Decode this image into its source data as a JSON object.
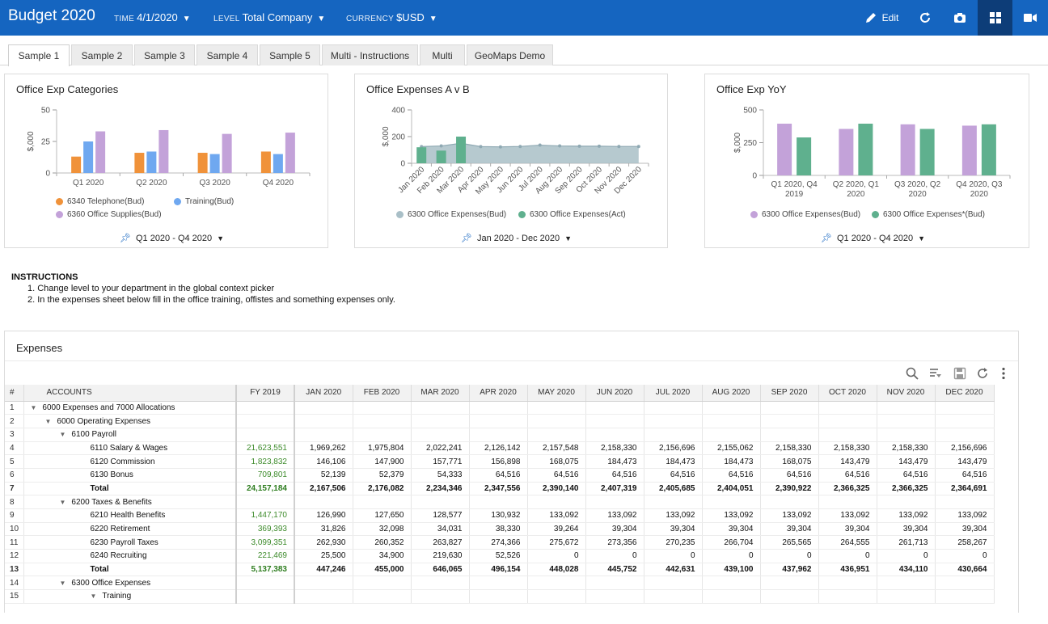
{
  "header": {
    "title": "Budget 2020",
    "time_label": "TIME",
    "time_value": "4/1/2020",
    "level_label": "LEVEL",
    "level_value": "Total Company",
    "currency_label": "CURRENCY",
    "currency_value": "$USD",
    "edit_label": "Edit"
  },
  "colors": {
    "brand": "#1565c0",
    "orange": "#f0923a",
    "blue": "#6fa8f0",
    "purple": "#c3a2d9",
    "teal": "#5fb08e",
    "slate": "#a9bfc7"
  },
  "tabs": [
    {
      "label": "Sample 1",
      "active": true
    },
    {
      "label": "Sample 2"
    },
    {
      "label": "Sample 3"
    },
    {
      "label": "Sample 4"
    },
    {
      "label": "Sample 5"
    },
    {
      "label": "Multi - Instructions"
    },
    {
      "label": "Multi"
    },
    {
      "label": "GeoMaps Demo"
    }
  ],
  "charts": {
    "categories": {
      "title": "Office Exp Categories",
      "period": "Q1 2020 - Q4 2020"
    },
    "avb": {
      "title": "Office Expenses A v B",
      "period": "Jan 2020 - Dec 2020"
    },
    "yoy": {
      "title": "Office Exp YoY",
      "period": "Q1 2020 - Q4 2020"
    }
  },
  "chart_data": [
    {
      "type": "bar",
      "title": "Office Exp Categories",
      "ylabel": "$,000",
      "ylim": [
        0,
        50
      ],
      "yticks": [
        "0",
        "25",
        "50"
      ],
      "categories": [
        "Q1 2020",
        "Q2 2020",
        "Q3 2020",
        "Q4 2020"
      ],
      "series": [
        {
          "name": "6340 Telephone(Bud)",
          "color": "#f0923a",
          "values": [
            13,
            16,
            16,
            17
          ]
        },
        {
          "name": "Training(Bud)",
          "color": "#6fa8f0",
          "values": [
            25,
            17,
            15,
            15
          ]
        },
        {
          "name": "6360 Office Supplies(Bud)",
          "color": "#c3a2d9",
          "values": [
            33,
            34,
            31,
            32
          ]
        }
      ],
      "legend": "bottom"
    },
    {
      "type": "area",
      "title": "Office Expenses A v B",
      "ylabel": "$,000",
      "ylim": [
        0,
        400
      ],
      "yticks": [
        "0",
        "200",
        "400"
      ],
      "categories": [
        "Jan 2020",
        "Feb 2020",
        "Mar 2020",
        "Apr 2020",
        "May 2020",
        "Jun 2020",
        "Jul 2020",
        "Aug 2020",
        "Sep 2020",
        "Oct 2020",
        "Nov 2020",
        "Dec 2020"
      ],
      "series": [
        {
          "name": "6300 Office Expenses(Bud)",
          "color": "#a9bfc7",
          "kind": "area",
          "values": [
            125,
            130,
            150,
            125,
            123,
            126,
            136,
            130,
            128,
            128,
            126,
            126
          ]
        },
        {
          "name": "6300 Office Expenses(Act)",
          "color": "#5fb08e",
          "kind": "bar",
          "values": [
            120,
            95,
            200,
            null,
            null,
            null,
            null,
            null,
            null,
            null,
            null,
            null
          ]
        }
      ],
      "legend": "bottom"
    },
    {
      "type": "bar",
      "title": "Office Exp YoY",
      "ylabel": "$,000",
      "ylim": [
        0,
        500
      ],
      "yticks": [
        "0",
        "250",
        "500"
      ],
      "categories": [
        [
          "Q1 2020, Q4",
          "2019"
        ],
        [
          "Q2 2020, Q1",
          "2020"
        ],
        [
          "Q3 2020, Q2",
          "2020"
        ],
        [
          "Q4 2020, Q3",
          "2020"
        ]
      ],
      "series": [
        {
          "name": "6300 Office Expenses(Bud)",
          "color": "#c3a2d9",
          "values": [
            395,
            355,
            390,
            380
          ]
        },
        {
          "name": "6300 Office Expenses*(Bud)",
          "color": "#5fb08e",
          "values": [
            290,
            395,
            355,
            390
          ]
        }
      ],
      "legend": "bottom"
    }
  ],
  "instructions": {
    "title": "INSTRUCTIONS",
    "steps": [
      "1. Change level to your department in the global context picker",
      "2. In the expenses sheet below fill  in the office training, offistes and something expenses only."
    ]
  },
  "expenses": {
    "title": "Expenses",
    "columns": [
      "#",
      "ACCOUNTS",
      "FY 2019",
      "JAN 2020",
      "FEB 2020",
      "MAR 2020",
      "APR 2020",
      "MAY 2020",
      "JUN 2020",
      "JUL 2020",
      "AUG 2020",
      "SEP 2020",
      "OCT 2020",
      "NOV 2020",
      "DEC 2020"
    ],
    "rows": [
      {
        "n": "1",
        "indent": 0,
        "toggle": true,
        "account": "6000 Expenses and 7000 Allocations",
        "values": []
      },
      {
        "n": "2",
        "indent": 1,
        "toggle": true,
        "account": "6000 Operating Expenses",
        "values": []
      },
      {
        "n": "3",
        "indent": 2,
        "toggle": true,
        "account": "6100 Payroll",
        "values": []
      },
      {
        "n": "4",
        "indent": 3,
        "account": "6110 Salary & Wages",
        "values": [
          "21,623,551",
          "1,969,262",
          "1,975,804",
          "2,022,241",
          "2,126,142",
          "2,157,548",
          "2,158,330",
          "2,156,696",
          "2,155,062",
          "2,158,330",
          "2,158,330",
          "2,158,330",
          "2,156,696"
        ]
      },
      {
        "n": "5",
        "indent": 3,
        "account": "6120 Commission",
        "values": [
          "1,823,832",
          "146,106",
          "147,900",
          "157,771",
          "156,898",
          "168,075",
          "184,473",
          "184,473",
          "184,473",
          "168,075",
          "143,479",
          "143,479",
          "143,479"
        ]
      },
      {
        "n": "6",
        "indent": 3,
        "account": "6130 Bonus",
        "values": [
          "709,801",
          "52,139",
          "52,379",
          "54,333",
          "64,516",
          "64,516",
          "64,516",
          "64,516",
          "64,516",
          "64,516",
          "64,516",
          "64,516",
          "64,516"
        ]
      },
      {
        "n": "7",
        "indent": 3,
        "total": true,
        "account": "Total",
        "values": [
          "24,157,184",
          "2,167,506",
          "2,176,082",
          "2,234,346",
          "2,347,556",
          "2,390,140",
          "2,407,319",
          "2,405,685",
          "2,404,051",
          "2,390,922",
          "2,366,325",
          "2,366,325",
          "2,364,691"
        ]
      },
      {
        "n": "8",
        "indent": 2,
        "toggle": true,
        "account": "6200 Taxes & Benefits",
        "values": []
      },
      {
        "n": "9",
        "indent": 3,
        "account": "6210 Health Benefits",
        "values": [
          "1,447,170",
          "126,990",
          "127,650",
          "128,577",
          "130,932",
          "133,092",
          "133,092",
          "133,092",
          "133,092",
          "133,092",
          "133,092",
          "133,092",
          "133,092"
        ]
      },
      {
        "n": "10",
        "indent": 3,
        "account": "6220 Retirement",
        "values": [
          "369,393",
          "31,826",
          "32,098",
          "34,031",
          "38,330",
          "39,264",
          "39,304",
          "39,304",
          "39,304",
          "39,304",
          "39,304",
          "39,304",
          "39,304"
        ]
      },
      {
        "n": "11",
        "indent": 3,
        "account": "6230 Payroll Taxes",
        "values": [
          "3,099,351",
          "262,930",
          "260,352",
          "263,827",
          "274,366",
          "275,672",
          "273,356",
          "270,235",
          "266,704",
          "265,565",
          "264,555",
          "261,713",
          "258,267"
        ]
      },
      {
        "n": "12",
        "indent": 3,
        "account": "6240 Recruiting",
        "values": [
          "221,469",
          "25,500",
          "34,900",
          "219,630",
          "52,526",
          "0",
          "0",
          "0",
          "0",
          "0",
          "0",
          "0",
          "0"
        ]
      },
      {
        "n": "13",
        "indent": 3,
        "total": true,
        "account": "Total",
        "values": [
          "5,137,383",
          "447,246",
          "455,000",
          "646,065",
          "496,154",
          "448,028",
          "445,752",
          "442,631",
          "439,100",
          "437,962",
          "436,951",
          "434,110",
          "430,664"
        ]
      },
      {
        "n": "14",
        "indent": 2,
        "toggle": true,
        "account": "6300 Office Expenses",
        "values": []
      },
      {
        "n": "15",
        "indent": 3,
        "toggle": true,
        "account": "Training",
        "values": []
      }
    ]
  }
}
